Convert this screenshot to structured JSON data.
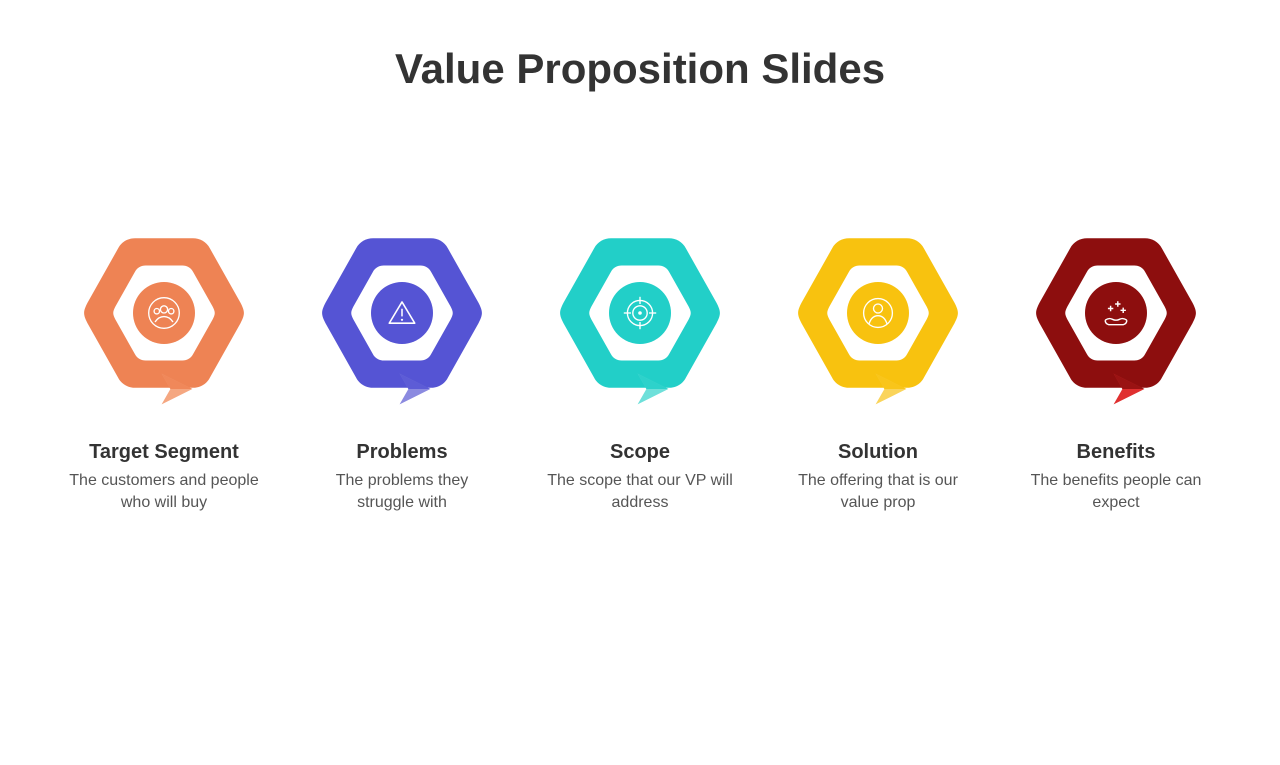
{
  "title": "Value Proposition Slides",
  "title_color": "#333333",
  "title_fontsize": 42,
  "background_color": "#ffffff",
  "item_title_fontsize": 20,
  "item_desc_fontsize": 16,
  "item_title_color": "#333333",
  "item_desc_color": "#555555",
  "items": [
    {
      "label": "Target Segment",
      "desc": "The customers and people who will buy",
      "color": "#ee8354",
      "color_light": "#f5a781",
      "icon": "users"
    },
    {
      "label": "Problems",
      "desc": "The problems they struggle with",
      "color": "#5554d4",
      "color_light": "#8b8ae0",
      "icon": "warning"
    },
    {
      "label": "Scope",
      "desc": "The scope that our VP will address",
      "color": "#22cfc8",
      "color_light": "#6ee0da",
      "icon": "target"
    },
    {
      "label": "Solution",
      "desc": "The offering that is our value prop",
      "color": "#f8c20f",
      "color_light": "#fad45a",
      "icon": "person"
    },
    {
      "label": "Benefits",
      "desc": "The benefits people can expect",
      "color": "#8d0e0e",
      "color_light": "#e03030",
      "icon": "benefits"
    }
  ]
}
